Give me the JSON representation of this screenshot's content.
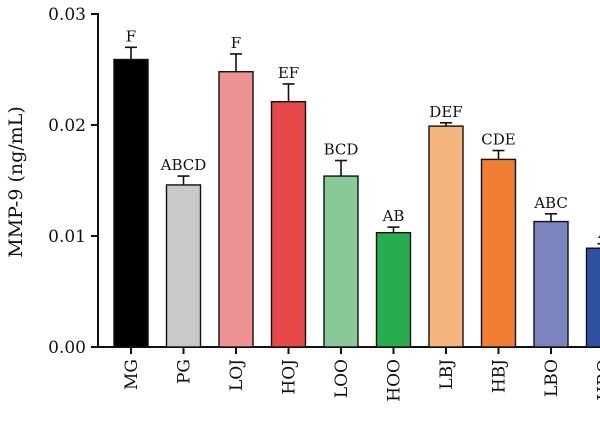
{
  "chart_data": {
    "type": "bar",
    "ylabel": "MMP-9 (ng/mL)",
    "xlabel": "",
    "title": "",
    "ylim": [
      0,
      0.03
    ],
    "yticks": [
      {
        "value": 0.0,
        "label": "0.00"
      },
      {
        "value": 0.01,
        "label": "0.01"
      },
      {
        "value": 0.02,
        "label": "0.02"
      },
      {
        "value": 0.03,
        "label": "0.03"
      }
    ],
    "grid": false,
    "categories": [
      "MG",
      "PG",
      "LOJ",
      "HOJ",
      "LOO",
      "HOO",
      "LBJ",
      "HBJ",
      "LBO",
      "HBO"
    ],
    "values": [
      0.0259,
      0.0146,
      0.0248,
      0.0221,
      0.0154,
      0.0103,
      0.0199,
      0.0169,
      0.0113,
      0.0089
    ],
    "errors": [
      0.0011,
      0.0008,
      0.0016,
      0.0016,
      0.0014,
      0.0005,
      0.0003,
      0.0008,
      0.0007,
      0.0004
    ],
    "significance_labels": [
      "F",
      "ABCD",
      "F",
      "EF",
      "BCD",
      "AB",
      "DEF",
      "CDE",
      "ABC",
      "A"
    ],
    "colors": [
      "#000000",
      "#c8c9cb",
      "#ee9294",
      "#e8474a",
      "#88c997",
      "#27ad50",
      "#f5b67d",
      "#ef7e32",
      "#7b84bf",
      "#2f4fa1"
    ]
  }
}
